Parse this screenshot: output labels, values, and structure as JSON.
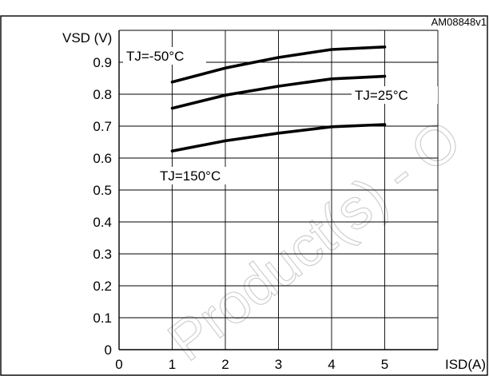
{
  "figure_code": "AM08848v1",
  "watermark": "Product(s) - O",
  "chart_data": {
    "type": "line",
    "xlabel": "ISD(A)",
    "ylabel": "VSD (V)",
    "xlim": [
      0,
      6
    ],
    "ylim": [
      0,
      1.0
    ],
    "x_ticks": [
      0,
      1,
      2,
      3,
      4,
      5
    ],
    "y_ticks": [
      0,
      0.1,
      0.2,
      0.3,
      0.4,
      0.5,
      0.6,
      0.7,
      0.8,
      0.9
    ],
    "grid": true,
    "series": [
      {
        "name": "TJ=-50°C",
        "x": [
          1,
          2,
          3,
          4,
          5
        ],
        "y": [
          0.838,
          0.882,
          0.915,
          0.94,
          0.948
        ]
      },
      {
        "name": "TJ=25°C",
        "x": [
          1,
          2,
          3,
          4,
          5
        ],
        "y": [
          0.756,
          0.797,
          0.825,
          0.848,
          0.856
        ]
      },
      {
        "name": "TJ=150°C",
        "x": [
          1,
          2,
          3,
          4,
          5
        ],
        "y": [
          0.622,
          0.654,
          0.678,
          0.698,
          0.705
        ]
      }
    ]
  }
}
